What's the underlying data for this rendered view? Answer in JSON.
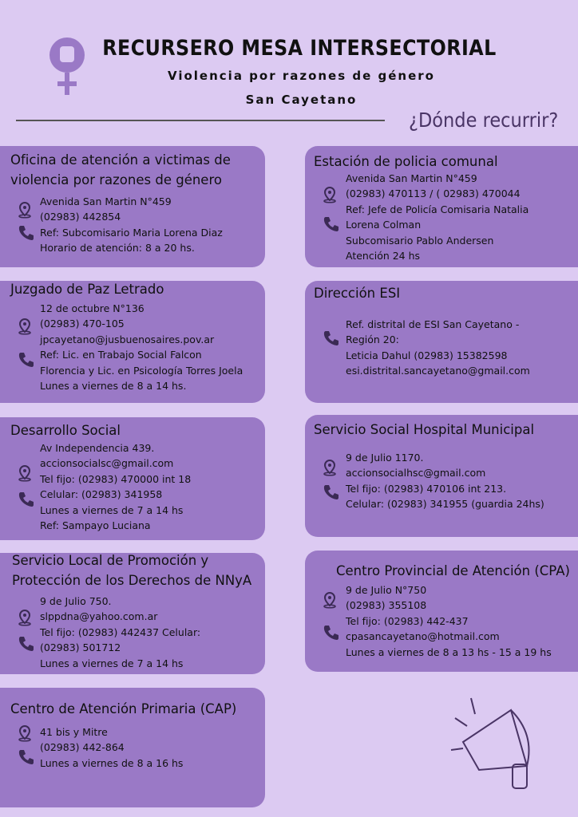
{
  "header": {
    "title": "RECURSERO MESA INTERSECTORIAL",
    "subtitle": "Violencia por razones de género",
    "location": "San Cayetano",
    "question": "¿Dónde recurrir?"
  },
  "cards": [
    {
      "title": [
        "Oficina de atención a victimas de",
        "violencia por razones de género"
      ],
      "lines": [
        "Avenida San Martin N°459",
        "(02983) 442854",
        "Ref: Subcomisario Maria Lorena Diaz",
        "Horario de atención: 8 a 20 hs."
      ]
    },
    {
      "title": [
        "Juzgado de Paz Letrado"
      ],
      "lines": [
        "12 de octubre N°136",
        "(02983) 470-105",
        "jpcayetano@jusbuenosaires.pov.ar",
        "Ref: Lic. en Trabajo Social Falcon",
        "Florencia y Lic. en Psicología Torres Joela",
        "Lunes a viernes de 8 a 14 hs."
      ]
    },
    {
      "title": [
        "Desarrollo Social"
      ],
      "lines": [
        "Av Independencia 439.",
        "accionsocialsc@gmail.com",
        "Tel fijo: (02983) 470000  int 18",
        "Celular: (02983) 341958",
        "Lunes a viernes de 7 a 14 hs",
        "Ref: Sampayo Luciana"
      ]
    },
    {
      "title": [
        "Servicio Local de Promoción y",
        "Protección de los Derechos de NNyA"
      ],
      "lines": [
        "9 de Julio 750.",
        "slppdna@yahoo.com.ar",
        "Tel fijo: (02983) 442437 Celular:",
        "(02983) 501712",
        "Lunes a viernes de 7 a 14 hs"
      ]
    },
    {
      "title": [
        "Centro de Atención Primaria (CAP)"
      ],
      "lines": [
        "41 bis y Mitre",
        "(02983) 442-864",
        "Lunes a viernes de 8 a 16 hs"
      ]
    },
    {
      "title": [
        "Estación de policia comunal"
      ],
      "lines": [
        "Avenida San Martin N°459",
        "(02983) 470113 / ( 02983) 470044",
        "Ref: Jefe de Policía Comisaria Natalia",
        "Lorena Colman",
        "Subcomisario Pablo Andersen",
        "Atención 24 hs"
      ]
    },
    {
      "title": [
        "Dirección ESI"
      ],
      "lines": [
        "Ref. distrital de ESI San Cayetano -",
        "Región 20:",
        "Leticia Dahul (02983) 15382598",
        "esi.distrital.sancayetano@gmail.com"
      ]
    },
    {
      "title": [
        "Servicio Social Hospital Municipal"
      ],
      "lines": [
        "9 de Julio 1170.",
        "accionsocialhsc@gmail.com",
        "Tel fijo: (02983) 470106 int 213.",
        "Celular: (02983) 341955 (guardia 24hs)"
      ]
    },
    {
      "title": [
        "Centro Provincial de Atención (CPA)"
      ],
      "lines": [
        "9 de Julio N°750",
        "(02983) 355108",
        "Tel fijo: (02983) 442-437",
        "cpasancayetano@hotmail.com",
        "Lunes a viernes de 8 a 13 hs - 15 a 19 hs"
      ]
    }
  ]
}
